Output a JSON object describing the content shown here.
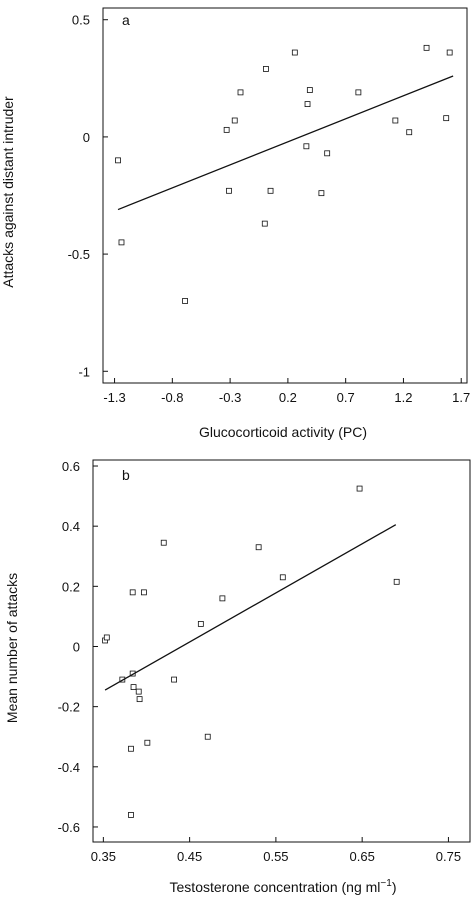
{
  "chart_data": [
    {
      "type": "scatter",
      "panel_label": "a",
      "xlabel": "Glucocorticoid activity (PC)",
      "ylabel": "Attacks against distant intruder",
      "xlim": [
        -1.4,
        1.75
      ],
      "ylim": [
        -1.05,
        0.55
      ],
      "x_ticks": [
        -1.3,
        -0.8,
        -0.3,
        0.2,
        0.7,
        1.2,
        1.7
      ],
      "x_tick_labels": [
        "-1.3",
        "-0.8",
        "-0.3",
        "0.2",
        "0.7",
        "1.2",
        "1.7"
      ],
      "y_ticks": [
        0.5,
        0,
        -0.5,
        -1
      ],
      "y_tick_labels": [
        "0.5",
        "0",
        "-0.5",
        "-1"
      ],
      "grid": false,
      "points": [
        {
          "x": -1.27,
          "y": -0.1
        },
        {
          "x": -1.24,
          "y": -0.45
        },
        {
          "x": -0.69,
          "y": -0.7
        },
        {
          "x": -0.33,
          "y": 0.03
        },
        {
          "x": -0.31,
          "y": -0.23
        },
        {
          "x": -0.26,
          "y": 0.07
        },
        {
          "x": -0.21,
          "y": 0.19
        },
        {
          "x": 0.0,
          "y": -0.37
        },
        {
          "x": 0.01,
          "y": 0.29
        },
        {
          "x": 0.05,
          "y": -0.23
        },
        {
          "x": 0.26,
          "y": 0.36
        },
        {
          "x": 0.36,
          "y": -0.04
        },
        {
          "x": 0.37,
          "y": 0.14
        },
        {
          "x": 0.39,
          "y": 0.2
        },
        {
          "x": 0.49,
          "y": -0.24
        },
        {
          "x": 0.54,
          "y": -0.07
        },
        {
          "x": 0.81,
          "y": 0.19
        },
        {
          "x": 1.13,
          "y": 0.07
        },
        {
          "x": 1.25,
          "y": 0.02
        },
        {
          "x": 1.4,
          "y": 0.38
        },
        {
          "x": 1.57,
          "y": 0.08
        },
        {
          "x": 1.6,
          "y": 0.36
        }
      ],
      "fit_line": {
        "x": [
          -1.27,
          1.63
        ],
        "y": [
          -0.31,
          0.26
        ]
      }
    },
    {
      "type": "scatter",
      "panel_label": "b",
      "xlabel": "Testosterone concentration (ng ml",
      "xlabel_superscript": "−1",
      "xlabel_suffix": ")",
      "ylabel": "Mean number of attacks",
      "xlim": [
        0.338,
        0.775
      ],
      "ylim": [
        -0.65,
        0.62
      ],
      "x_ticks": [
        0.35,
        0.45,
        0.55,
        0.65,
        0.75
      ],
      "x_tick_labels": [
        "0.35",
        "0.45",
        "0.55",
        "0.65",
        "0.75"
      ],
      "y_ticks": [
        0.6,
        0.4,
        0.2,
        0,
        -0.2,
        -0.4,
        -0.6
      ],
      "y_tick_labels": [
        "0.6",
        "0.4",
        "0.2",
        "0",
        "-0.2",
        "-0.4",
        "-0.6"
      ],
      "grid": false,
      "points": [
        {
          "x": 0.352,
          "y": 0.02
        },
        {
          "x": 0.354,
          "y": 0.03
        },
        {
          "x": 0.372,
          "y": -0.11
        },
        {
          "x": 0.382,
          "y": -0.34
        },
        {
          "x": 0.382,
          "y": -0.56
        },
        {
          "x": 0.384,
          "y": 0.18
        },
        {
          "x": 0.384,
          "y": -0.09
        },
        {
          "x": 0.385,
          "y": -0.135
        },
        {
          "x": 0.391,
          "y": -0.15
        },
        {
          "x": 0.392,
          "y": -0.175
        },
        {
          "x": 0.397,
          "y": 0.18
        },
        {
          "x": 0.401,
          "y": -0.32
        },
        {
          "x": 0.42,
          "y": 0.345
        },
        {
          "x": 0.432,
          "y": -0.11
        },
        {
          "x": 0.463,
          "y": 0.075
        },
        {
          "x": 0.471,
          "y": -0.3
        },
        {
          "x": 0.488,
          "y": 0.16
        },
        {
          "x": 0.53,
          "y": 0.33
        },
        {
          "x": 0.558,
          "y": 0.23
        },
        {
          "x": 0.647,
          "y": 0.525
        },
        {
          "x": 0.69,
          "y": 0.215
        }
      ],
      "fit_line": {
        "x": [
          0.352,
          0.689
        ],
        "y": [
          -0.145,
          0.405
        ]
      }
    }
  ]
}
